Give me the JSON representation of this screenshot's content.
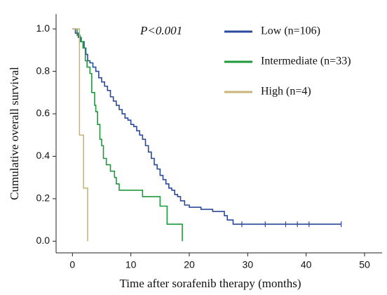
{
  "chart_data": {
    "type": "step",
    "annotation": "P<0.001",
    "xlabel": "Time after sorafenib therapy (months)",
    "ylabel": "Cumulative overall survival",
    "xlim": [
      -2.8,
      53
    ],
    "ylim": [
      -0.055,
      1.07
    ],
    "xticks": [
      0,
      10,
      20,
      30,
      40,
      50
    ],
    "yticks": [
      {
        "value": 0,
        "label": "0.0"
      },
      {
        "value": 0.2,
        "label": "0.2"
      },
      {
        "value": 0.4,
        "label": "0.4"
      },
      {
        "value": 0.6,
        "label": "0.6"
      },
      {
        "value": 0.8,
        "label": "0.8"
      },
      {
        "value": 1,
        "label": "1.0"
      }
    ],
    "series": [
      {
        "name": "Low (n=106)",
        "color": "#2c4a9c",
        "x": [
          0,
          0.5,
          1,
          1.5,
          2,
          2.3,
          2.6,
          3,
          3.5,
          4,
          4.5,
          5,
          5.5,
          6,
          6.5,
          7,
          7.5,
          8,
          8.5,
          9,
          9.5,
          10,
          10.5,
          11,
          11.5,
          12,
          12.5,
          13,
          13.5,
          14,
          14.5,
          15,
          15.5,
          16,
          16.5,
          17,
          17.5,
          18,
          18.5,
          19.2,
          20,
          22,
          24,
          26,
          26.5,
          27.5,
          46
        ],
        "values": [
          1,
          0.98,
          0.96,
          0.94,
          0.91,
          0.88,
          0.85,
          0.84,
          0.82,
          0.8,
          0.77,
          0.75,
          0.73,
          0.71,
          0.68,
          0.66,
          0.64,
          0.62,
          0.6,
          0.58,
          0.57,
          0.55,
          0.54,
          0.52,
          0.5,
          0.48,
          0.45,
          0.42,
          0.39,
          0.36,
          0.34,
          0.31,
          0.29,
          0.27,
          0.25,
          0.24,
          0.22,
          0.21,
          0.19,
          0.17,
          0.16,
          0.15,
          0.14,
          0.12,
          0.1,
          0.08,
          0.08
        ],
        "censored_x": [
          29,
          33,
          36.5,
          38.5,
          40.5,
          46
        ],
        "censored_values": [
          0.08,
          0.08,
          0.08,
          0.08,
          0.08,
          0.08
        ]
      },
      {
        "name": "Intermediate (n=33)",
        "color": "#1e9a3c",
        "x": [
          0,
          0.8,
          1.3,
          1.8,
          2.2,
          2.5,
          3,
          3.3,
          3.8,
          4,
          4.3,
          4.7,
          5,
          5.3,
          5.8,
          6.5,
          7.2,
          7.5,
          8,
          12,
          15,
          16.2,
          18.8
        ],
        "values": [
          1,
          0.97,
          0.94,
          0.91,
          0.85,
          0.82,
          0.79,
          0.7,
          0.64,
          0.61,
          0.55,
          0.48,
          0.45,
          0.39,
          0.36,
          0.33,
          0.3,
          0.27,
          0.24,
          0.21,
          0.165,
          0.08,
          0
        ]
      },
      {
        "name": "High (n=4)",
        "color": "#c9b47e",
        "x": [
          0,
          1.2,
          1.9,
          2.6
        ],
        "values": [
          1,
          0.5,
          0.25,
          0
        ]
      }
    ]
  }
}
